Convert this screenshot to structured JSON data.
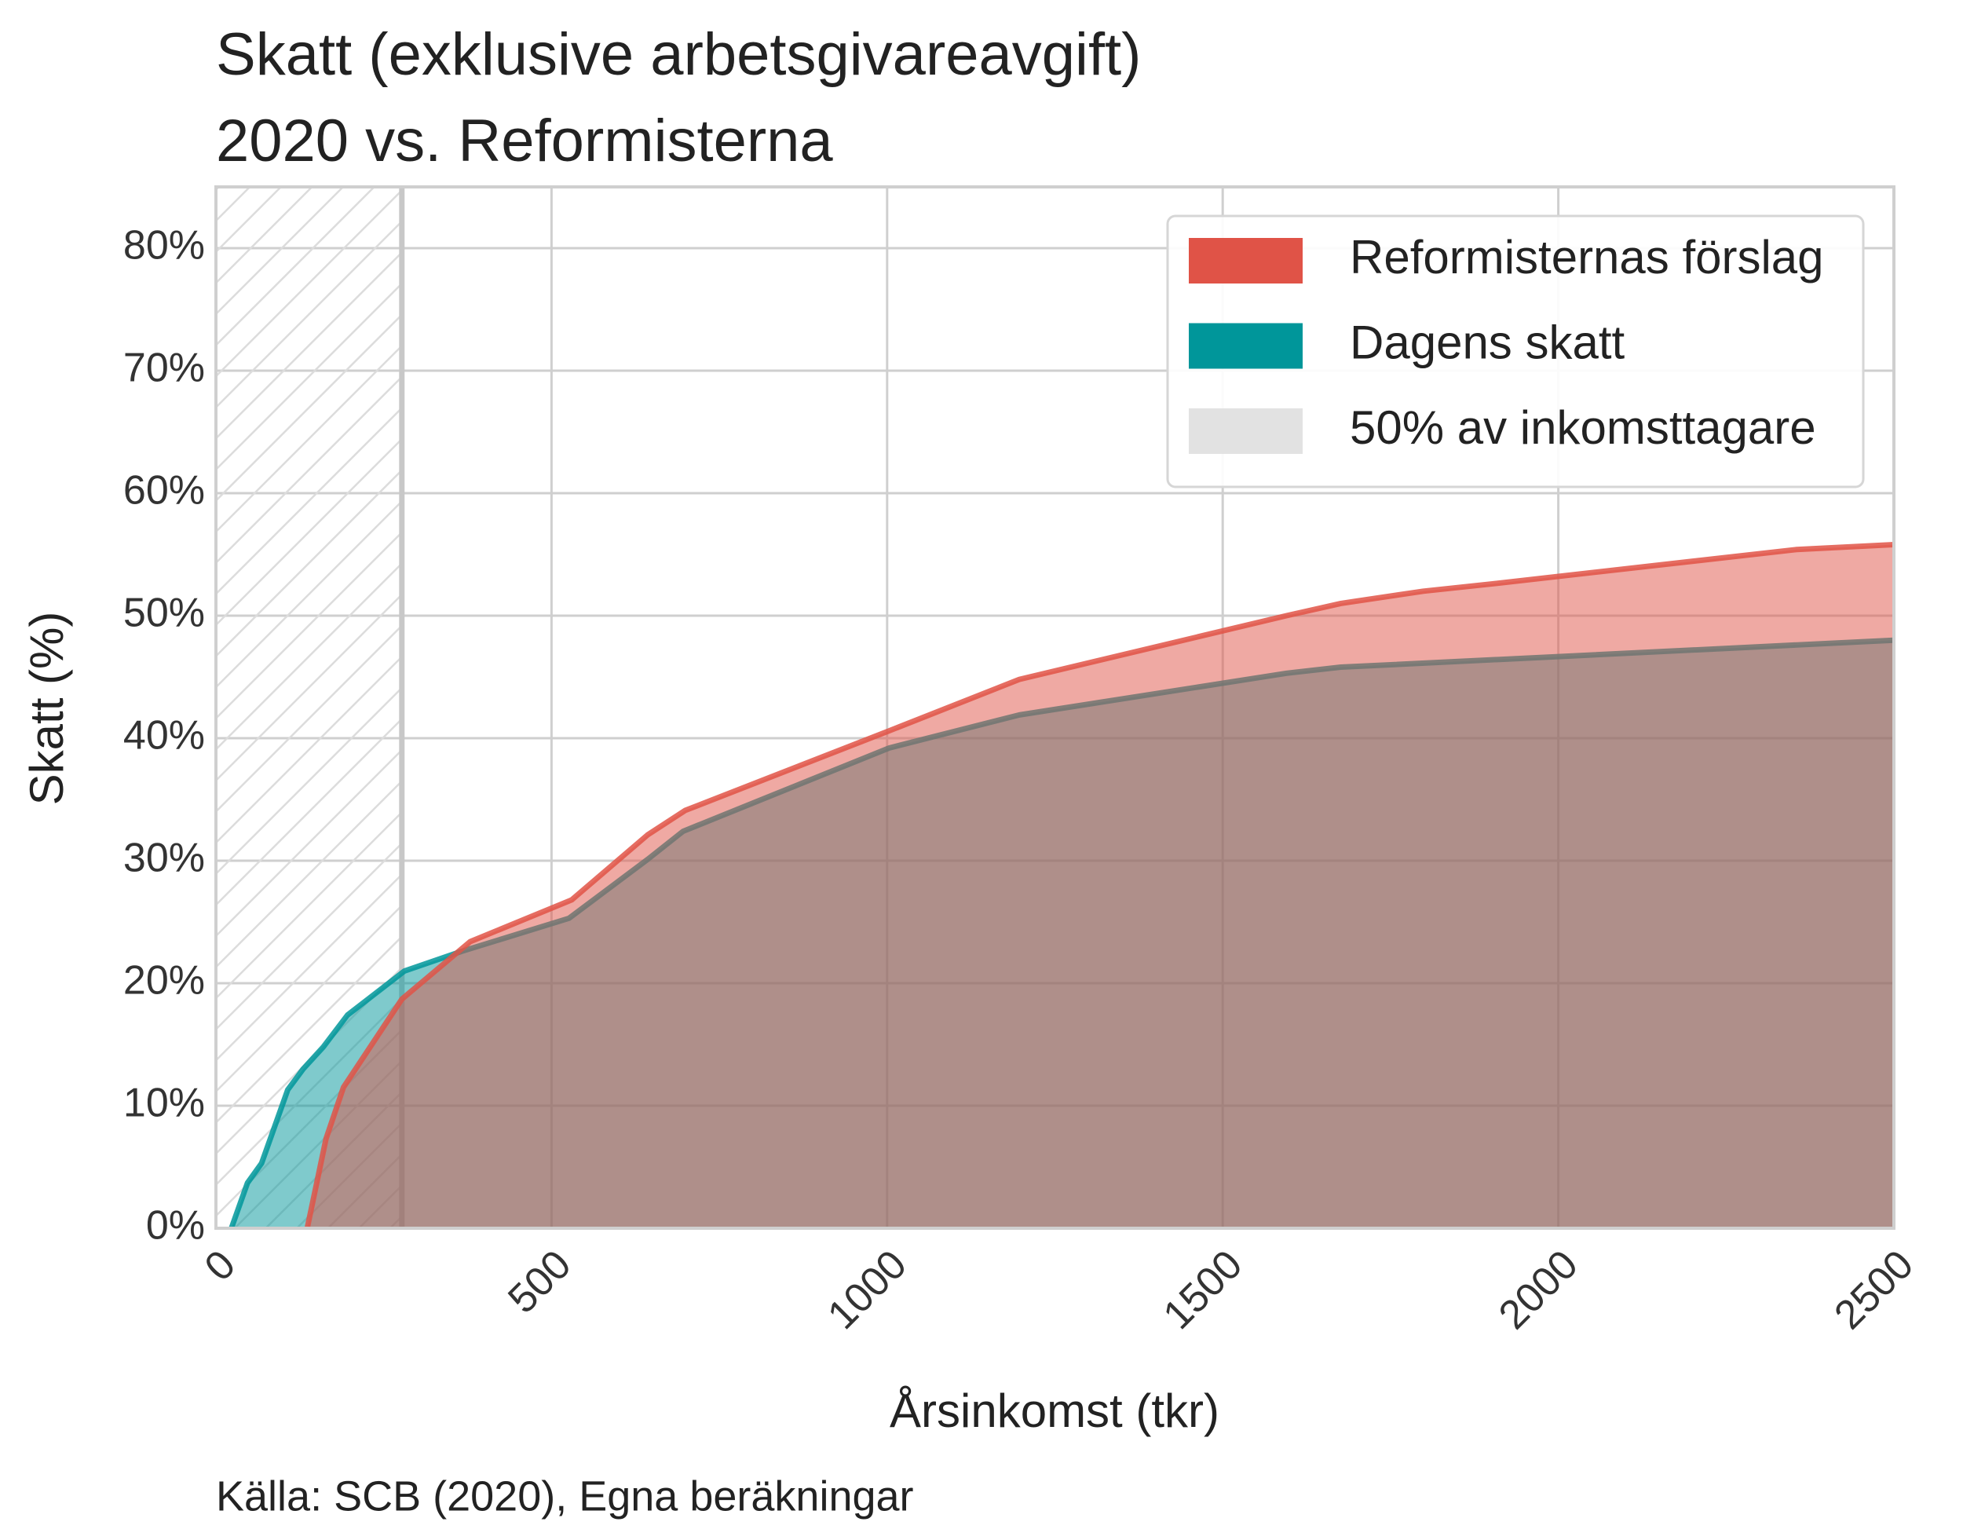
{
  "chart_data": {
    "type": "area",
    "title": [
      "Skatt (exklusive arbetsgivareavgift)",
      "2020 vs. Reformisterna"
    ],
    "xlabel": "Årsinkomst (tkr)",
    "ylabel": "Skatt (%)",
    "source": "Källa: SCB (2020), Egna beräkningar",
    "xlim": [
      0,
      2500
    ],
    "ylim": [
      0,
      85
    ],
    "xticks": [
      0,
      500,
      1000,
      1500,
      2000,
      2500
    ],
    "yticks": [
      {
        "value": 0,
        "label": "0%"
      },
      {
        "value": 10,
        "label": "10%"
      },
      {
        "value": 20,
        "label": "20%"
      },
      {
        "value": 30,
        "label": "30%"
      },
      {
        "value": 40,
        "label": "40%"
      },
      {
        "value": 50,
        "label": "50%"
      },
      {
        "value": 60,
        "label": "60%"
      },
      {
        "value": 70,
        "label": "70%"
      },
      {
        "value": 80,
        "label": "80%"
      }
    ],
    "grid": true,
    "legend": "upper right",
    "shaded_region": {
      "name": "50% av inkomsttagare",
      "color": "#e2e2e2",
      "x": [
        0,
        277
      ]
    },
    "series": [
      {
        "name": "Dagens skatt",
        "color": "#00969a",
        "x": [
          23,
          47,
          68,
          107,
          130,
          160,
          196,
          281,
          366,
          526,
          643,
          696,
          1003,
          1197,
          1595,
          1676,
          1940,
          2500
        ],
        "values": [
          0,
          3.7,
          5.3,
          11.3,
          13,
          14.8,
          17.4,
          21,
          22.6,
          25.3,
          30.1,
          32.4,
          39.2,
          41.9,
          45.3,
          45.8,
          46.5,
          48
        ]
      },
      {
        "name": "Reformisternas förslag",
        "color": "#e05347",
        "x": [
          136,
          164,
          190,
          277,
          379,
          530,
          643,
          699,
          1003,
          1197,
          1595,
          1676,
          1799,
          1902,
          2355,
          2500
        ],
        "values": [
          0,
          7.3,
          11.5,
          18.7,
          23.4,
          26.8,
          32.1,
          34.1,
          40.6,
          44.8,
          50,
          51,
          52,
          52.6,
          55.4,
          55.8
        ]
      }
    ]
  }
}
